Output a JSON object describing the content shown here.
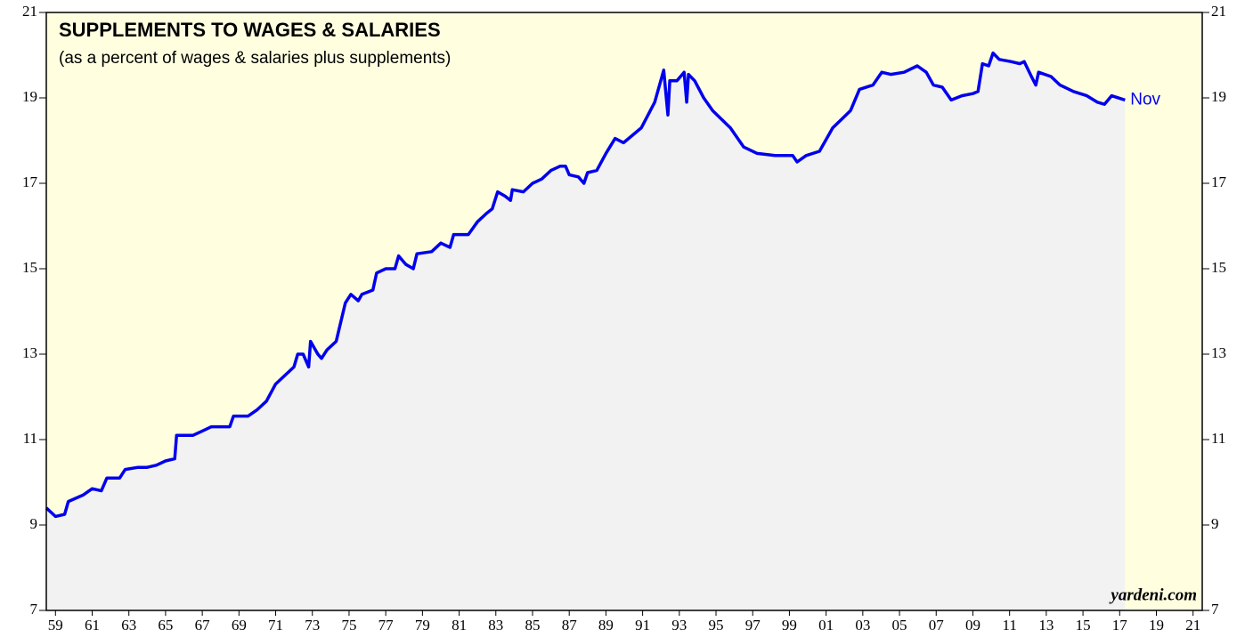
{
  "chart_data": {
    "type": "line",
    "title": "SUPPLEMENTS TO WAGES & SALARIES",
    "subtitle": "(as a percent of wages & salaries plus supplements)",
    "annotation": "Nov",
    "source": "yardeni.com",
    "x": [
      1959.0,
      1959.5,
      1960.0,
      1960.2,
      1961.0,
      1961.5,
      1962.0,
      1962.3,
      1963.0,
      1963.3,
      1964.0,
      1964.5,
      1965.0,
      1965.5,
      1966.0,
      1966.1,
      1966.5,
      1967.0,
      1967.5,
      1968.0,
      1968.5,
      1969.0,
      1969.2,
      1970.0,
      1970.5,
      1971.0,
      1971.5,
      1972.0,
      1972.5,
      1972.7,
      1973.0,
      1973.3,
      1973.4,
      1973.8,
      1974.0,
      1974.3,
      1974.8,
      1975.3,
      1975.6,
      1976.0,
      1976.2,
      1976.8,
      1977.0,
      1977.5,
      1978.0,
      1978.2,
      1978.6,
      1979.0,
      1979.2,
      1980.0,
      1980.5,
      1981.0,
      1981.2,
      1982.0,
      1982.5,
      1983.0,
      1983.3,
      1983.6,
      1984.0,
      1984.3,
      1984.4,
      1985.0,
      1985.5,
      1986.0,
      1986.5,
      1987.0,
      1987.3,
      1987.5,
      1988.0,
      1988.3,
      1988.5,
      1989.0,
      1989.5,
      1990.0,
      1990.46,
      1991.43,
      1992.16,
      1992.65,
      1992.88,
      1992.98,
      1993.37,
      1993.76,
      1993.9,
      1994.0,
      1994.34,
      1994.83,
      1995.32,
      1996.28,
      1997.01,
      1997.74,
      1998.71,
      1999.68,
      1999.92,
      2000.41,
      2001.14,
      2001.86,
      2002.35,
      2002.83,
      2003.32,
      2004.05,
      2004.53,
      2005.02,
      2005.75,
      2006.47,
      2006.96,
      2007.35,
      2007.83,
      2008.32,
      2008.9,
      2009.49,
      2009.78,
      2010.02,
      2010.36,
      2010.6,
      2010.94,
      2011.57,
      2012.06,
      2012.3,
      2012.69,
      2012.93,
      2013.08,
      2013.76,
      2014.25,
      2014.98,
      2015.71,
      2016.28,
      2016.67,
      2017.06,
      2017.79
    ],
    "series": [
      {
        "color": "#0000ee",
        "values": [
          9.4,
          9.2,
          9.25,
          9.55,
          9.7,
          9.85,
          9.8,
          10.1,
          10.1,
          10.3,
          10.35,
          10.35,
          10.4,
          10.5,
          10.55,
          11.1,
          11.1,
          11.1,
          11.2,
          11.3,
          11.3,
          11.3,
          11.55,
          11.55,
          11.7,
          11.9,
          12.3,
          12.5,
          12.7,
          13.0,
          13.0,
          12.7,
          13.3,
          13.0,
          12.9,
          13.1,
          13.3,
          14.2,
          14.4,
          14.25,
          14.4,
          14.5,
          14.9,
          15.0,
          15.0,
          15.3,
          15.1,
          15.0,
          15.35,
          15.4,
          15.6,
          15.5,
          15.8,
          15.8,
          16.1,
          16.3,
          16.4,
          16.8,
          16.7,
          16.6,
          16.85,
          16.8,
          17.0,
          17.1,
          17.3,
          17.4,
          17.4,
          17.2,
          17.15,
          17.0,
          17.25,
          17.3,
          17.7,
          18.05,
          17.95,
          18.3,
          18.9,
          19.65,
          18.6,
          19.4,
          19.4,
          19.6,
          18.9,
          19.55,
          19.4,
          19.0,
          18.7,
          18.3,
          17.85,
          17.7,
          17.65,
          17.65,
          17.5,
          17.65,
          17.75,
          18.3,
          18.5,
          18.7,
          19.2,
          19.3,
          19.6,
          19.55,
          19.6,
          19.75,
          19.6,
          19.3,
          19.25,
          18.95,
          19.05,
          19.1,
          19.15,
          19.8,
          19.75,
          20.05,
          19.9,
          19.85,
          19.8,
          19.85,
          19.5,
          19.3,
          19.6,
          19.5,
          19.3,
          19.15,
          19.05,
          18.9,
          18.85,
          19.05,
          18.95
        ]
      }
    ],
    "xlim": [
      1959,
      2022
    ],
    "xticks": [
      {
        "value": 1959.5,
        "label": "59"
      },
      {
        "value": 1961.5,
        "label": "61"
      },
      {
        "value": 1963.5,
        "label": "63"
      },
      {
        "value": 1965.5,
        "label": "65"
      },
      {
        "value": 1967.5,
        "label": "67"
      },
      {
        "value": 1969.5,
        "label": "69"
      },
      {
        "value": 1971.5,
        "label": "71"
      },
      {
        "value": 1973.5,
        "label": "73"
      },
      {
        "value": 1975.5,
        "label": "75"
      },
      {
        "value": 1977.5,
        "label": "77"
      },
      {
        "value": 1979.5,
        "label": "79"
      },
      {
        "value": 1981.5,
        "label": "81"
      },
      {
        "value": 1983.5,
        "label": "83"
      },
      {
        "value": 1985.5,
        "label": "85"
      },
      {
        "value": 1987.5,
        "label": "87"
      },
      {
        "value": 1989.5,
        "label": "89"
      },
      {
        "value": 1991.5,
        "label": "91"
      },
      {
        "value": 1993.5,
        "label": "93"
      },
      {
        "value": 1995.5,
        "label": "95"
      },
      {
        "value": 1997.5,
        "label": "97"
      },
      {
        "value": 1999.5,
        "label": "99"
      },
      {
        "value": 2001.5,
        "label": "01"
      },
      {
        "value": 2003.5,
        "label": "03"
      },
      {
        "value": 2005.5,
        "label": "05"
      },
      {
        "value": 2007.5,
        "label": "07"
      },
      {
        "value": 2009.5,
        "label": "09"
      },
      {
        "value": 2011.5,
        "label": "11"
      },
      {
        "value": 2013.5,
        "label": "13"
      },
      {
        "value": 2015.5,
        "label": "15"
      },
      {
        "value": 2017.5,
        "label": "17"
      },
      {
        "value": 2019.5,
        "label": "19"
      },
      {
        "value": 2021.5,
        "label": "21"
      }
    ],
    "ylim": [
      7,
      21
    ],
    "yticks": [
      7,
      9,
      11,
      13,
      15,
      17,
      19,
      21
    ]
  }
}
